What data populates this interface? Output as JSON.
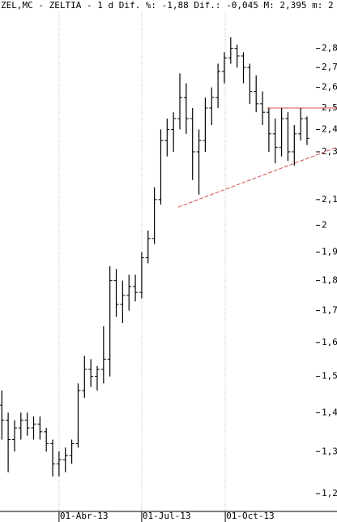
{
  "chart_data": {
    "type": "ohlc",
    "title": "ZEL,MC - ZELTIA -  1 d Dif. %: -1,88 Dif.: -0,045 M: 2,395 m: 2",
    "x": [
      "2013-01-28",
      "2013-02-04",
      "2013-02-11",
      "2013-02-18",
      "2013-02-25",
      "2013-03-04",
      "2013-03-11",
      "2013-03-18",
      "2013-03-25",
      "2013-04-01",
      "2013-04-08",
      "2013-04-15",
      "2013-04-22",
      "2013-04-29",
      "2013-05-06",
      "2013-05-13",
      "2013-05-20",
      "2013-05-27",
      "2013-06-03",
      "2013-06-10",
      "2013-06-17",
      "2013-06-24",
      "2013-07-01",
      "2013-07-08",
      "2013-07-15",
      "2013-07-22",
      "2013-07-29",
      "2013-08-05",
      "2013-08-12",
      "2013-08-19",
      "2013-08-26",
      "2013-09-02",
      "2013-09-09",
      "2013-09-16",
      "2013-09-23",
      "2013-09-30",
      "2013-10-07",
      "2013-10-14",
      "2013-10-21",
      "2013-10-28",
      "2013-11-04",
      "2013-11-11",
      "2013-11-18",
      "2013-11-25",
      "2013-12-02",
      "2013-12-09",
      "2013-12-16",
      "2013-12-23",
      "2013-12-30"
    ],
    "open": [
      1.42,
      1.38,
      1.33,
      1.36,
      1.38,
      1.36,
      1.37,
      1.35,
      1.32,
      1.27,
      1.28,
      1.29,
      1.32,
      1.46,
      1.52,
      1.5,
      1.52,
      1.55,
      1.8,
      1.72,
      1.75,
      1.78,
      1.76,
      1.88,
      1.95,
      2.1,
      2.35,
      2.4,
      2.45,
      2.55,
      2.45,
      2.3,
      2.35,
      2.5,
      2.55,
      2.68,
      2.75,
      2.8,
      2.76,
      2.7,
      2.58,
      2.52,
      2.48,
      2.38,
      2.32,
      2.45,
      2.3,
      2.38,
      2.45
    ],
    "high": [
      1.46,
      1.4,
      1.38,
      1.4,
      1.4,
      1.39,
      1.39,
      1.36,
      1.33,
      1.3,
      1.31,
      1.33,
      1.48,
      1.56,
      1.55,
      1.53,
      1.65,
      1.85,
      1.84,
      1.8,
      1.82,
      1.82,
      1.9,
      1.98,
      2.15,
      2.4,
      2.45,
      2.48,
      2.67,
      2.62,
      2.5,
      2.4,
      2.55,
      2.6,
      2.72,
      2.78,
      2.86,
      2.82,
      2.78,
      2.72,
      2.66,
      2.58,
      2.5,
      2.45,
      2.5,
      2.48,
      2.42,
      2.5,
      2.46
    ],
    "low": [
      1.33,
      1.25,
      1.3,
      1.33,
      1.34,
      1.33,
      1.33,
      1.3,
      1.24,
      1.24,
      1.25,
      1.27,
      1.31,
      1.44,
      1.47,
      1.46,
      1.48,
      1.5,
      1.68,
      1.66,
      1.7,
      1.73,
      1.74,
      1.86,
      1.93,
      2.08,
      2.28,
      2.3,
      2.4,
      2.38,
      2.18,
      2.12,
      2.3,
      2.42,
      2.5,
      2.62,
      2.72,
      2.7,
      2.62,
      2.52,
      2.48,
      2.42,
      2.3,
      2.25,
      2.28,
      2.26,
      2.24,
      2.35,
      2.33
    ],
    "close": [
      1.38,
      1.33,
      1.36,
      1.38,
      1.36,
      1.37,
      1.35,
      1.32,
      1.27,
      1.28,
      1.29,
      1.32,
      1.46,
      1.52,
      1.5,
      1.52,
      1.55,
      1.8,
      1.72,
      1.75,
      1.78,
      1.76,
      1.88,
      1.95,
      2.1,
      2.35,
      2.4,
      2.45,
      2.55,
      2.45,
      2.3,
      2.35,
      2.5,
      2.55,
      2.68,
      2.75,
      2.8,
      2.76,
      2.7,
      2.58,
      2.52,
      2.48,
      2.38,
      2.32,
      2.45,
      2.3,
      2.38,
      2.45,
      2.36
    ],
    "color": "#000000",
    "xlim": [
      "2013-01-26",
      "2014-02-01"
    ],
    "xticks": [
      {
        "value": "2013-04-01",
        "label": "01-Abr-13"
      },
      {
        "value": "2013-07-01",
        "label": "01-Jul-13"
      },
      {
        "value": "2013-10-01",
        "label": "01-Oct-13"
      }
    ],
    "ylim": [
      1.16,
      3.0
    ],
    "ylog": true,
    "yticks": [
      {
        "value": 1.2,
        "label": "1,2"
      },
      {
        "value": 1.3,
        "label": "1,3"
      },
      {
        "value": 1.4,
        "label": "1,4"
      },
      {
        "value": 1.5,
        "label": "1,5"
      },
      {
        "value": 1.6,
        "label": "1,6"
      },
      {
        "value": 1.7,
        "label": "1,7"
      },
      {
        "value": 1.8,
        "label": "1,8"
      },
      {
        "value": 1.9,
        "label": "1,9"
      },
      2,
      {
        "value": 2.1,
        "label": "2,1"
      },
      {
        "value": 2.3,
        "label": "2,3"
      },
      {
        "value": 2.4,
        "label": "2,4"
      },
      {
        "value": 2.5,
        "label": "2,5"
      },
      {
        "value": 2.6,
        "label": "2,6"
      },
      {
        "value": 2.7,
        "label": "2,7"
      },
      {
        "value": 2.8,
        "label": "2,8"
      }
    ],
    "xgrid": true,
    "trendlines": [
      {
        "x": [
          "2013-08-10",
          "2014-02-01"
        ],
        "y": [
          2.07,
          2.32
        ],
        "color": "#d05050",
        "dashed": true
      },
      {
        "x": [
          "2013-11-16",
          "2014-02-01"
        ],
        "y": [
          2.5,
          2.5
        ],
        "color": "#d05050",
        "dashed": false
      }
    ]
  }
}
